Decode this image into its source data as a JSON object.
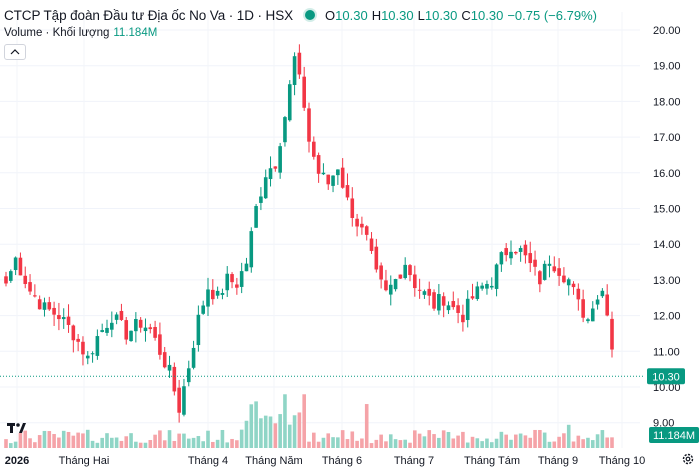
{
  "header": {
    "title": "CTCP Tập đoàn Đầu tư Địa ốc No Va · 1D · HSX",
    "open_label": "O",
    "open": "10.30",
    "high_label": "H",
    "high": "10.30",
    "low_label": "L",
    "low": "10.30",
    "close_label": "C",
    "close": "10.30",
    "change": "−0.75 (−6.79%)"
  },
  "volume_legend": {
    "label": "Volume · Khối lượng",
    "value": "11.184M"
  },
  "badges": {
    "price": "10.30",
    "volume": "11.184M"
  },
  "colors": {
    "up": "#089981",
    "down": "#f23645",
    "vol_up": "#8fd5c6",
    "vol_down": "#f5a3a8",
    "last_price_line": "#089981"
  },
  "icons": {
    "logo": "tradingview-logo-icon",
    "settings": "gear-icon",
    "collapse": "chevron-up-icon"
  },
  "chart_data": {
    "type": "candlestick",
    "timeframe": "1D",
    "y_ticks": [
      "9.00",
      "10.00",
      "11.00",
      "12.00",
      "13.00",
      "14.00",
      "15.00",
      "16.00",
      "17.00",
      "18.00",
      "19.00",
      "20.00"
    ],
    "ylim": [
      8.6,
      20.4
    ],
    "x_ticks": [
      "2026",
      "Tháng Hai",
      "Tháng 4",
      "Tháng Năm",
      "Tháng 6",
      "Tháng 7",
      "Tháng Tám",
      "Tháng 9",
      "Tháng 10"
    ],
    "last_price": 10.3,
    "close_path": [
      [
        0,
        12.9
      ],
      [
        2,
        13.6
      ],
      [
        5,
        12.7
      ],
      [
        8,
        12.2
      ],
      [
        11,
        12.0
      ],
      [
        14,
        11.5
      ],
      [
        17,
        10.8
      ],
      [
        19,
        11.4
      ],
      [
        22,
        12.0
      ],
      [
        25,
        11.5
      ],
      [
        28,
        11.8
      ],
      [
        30,
        11.6
      ],
      [
        32,
        11.0
      ],
      [
        34,
        10.4
      ],
      [
        36,
        9.4
      ],
      [
        38,
        10.6
      ],
      [
        40,
        11.9
      ],
      [
        42,
        12.8
      ],
      [
        44,
        12.5
      ],
      [
        46,
        13.0
      ],
      [
        48,
        12.9
      ],
      [
        50,
        13.5
      ],
      [
        52,
        15.0
      ],
      [
        54,
        16.0
      ],
      [
        56,
        16.3
      ],
      [
        58,
        17.6
      ],
      [
        60,
        19.2
      ],
      [
        62,
        17.9
      ],
      [
        63,
        16.9
      ],
      [
        65,
        16.0
      ],
      [
        67,
        15.7
      ],
      [
        69,
        16.2
      ],
      [
        71,
        15.2
      ],
      [
        73,
        14.6
      ],
      [
        75,
        14.1
      ],
      [
        77,
        13.1
      ],
      [
        79,
        12.6
      ],
      [
        81,
        13.0
      ],
      [
        83,
        13.5
      ],
      [
        85,
        12.9
      ],
      [
        87,
        12.6
      ],
      [
        89,
        12.3
      ],
      [
        91,
        12.5
      ],
      [
        93,
        12.2
      ],
      [
        95,
        12.0
      ],
      [
        97,
        12.5
      ],
      [
        99,
        12.8
      ],
      [
        101,
        13.0
      ],
      [
        103,
        13.6
      ],
      [
        105,
        14.0
      ],
      [
        107,
        13.8
      ],
      [
        109,
        13.4
      ],
      [
        111,
        13.0
      ],
      [
        113,
        13.6
      ],
      [
        115,
        13.3
      ],
      [
        117,
        13.0
      ],
      [
        119,
        12.3
      ],
      [
        121,
        11.9
      ],
      [
        122,
        12.4
      ],
      [
        124,
        12.7
      ],
      [
        125,
        12.2
      ],
      [
        126,
        11.05
      ]
    ],
    "volume_range_millions": [
      0,
      95
    ]
  }
}
